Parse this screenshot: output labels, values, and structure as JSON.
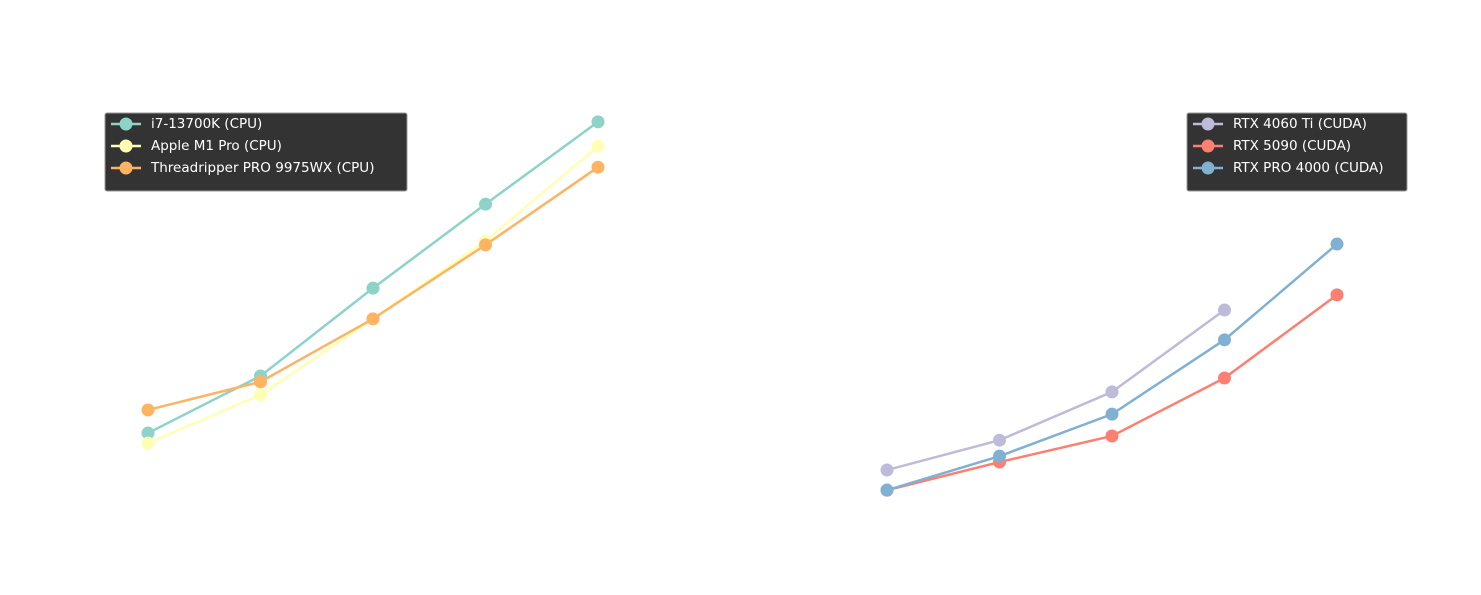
{
  "chart_data": [
    {
      "type": "line",
      "categories": [
        null,
        null,
        null,
        null,
        null
      ],
      "ylim": [
        0,
        100
      ],
      "legend": "upper left",
      "series": [
        {
          "name": "i7-13700K (CPU)",
          "color": "#8dd3c7",
          "values": [
            20.7,
            34.3,
            55.2,
            75.2,
            94.8
          ]
        },
        {
          "name": "Apple M1 Pro (CPU)",
          "color": "#ffffb3",
          "values": [
            18.3,
            29.8,
            47.9,
            66.4,
            89.0
          ]
        },
        {
          "name": "Threadripper PRO 9975WX (CPU)",
          "color": "#fdb462",
          "values": [
            26.2,
            32.9,
            47.9,
            65.5,
            84.0
          ]
        }
      ]
    },
    {
      "type": "line",
      "categories": [
        null,
        null,
        null,
        null,
        null
      ],
      "ylim": [
        0,
        100
      ],
      "legend": "upper right",
      "series": [
        {
          "name": "RTX 4060 Ti (CUDA)",
          "color": "#bebada",
          "values": [
            11.9,
            19.0,
            30.5,
            50.0,
            null
          ]
        },
        {
          "name": "RTX 5090 (CUDA)",
          "color": "#fb8072",
          "values": [
            7.1,
            13.8,
            20.0,
            33.8,
            53.6
          ]
        },
        {
          "name": "RTX PRO 4000 (CUDA)",
          "color": "#80b1d3",
          "values": [
            7.1,
            15.2,
            25.2,
            42.9,
            65.7
          ]
        }
      ]
    }
  ]
}
